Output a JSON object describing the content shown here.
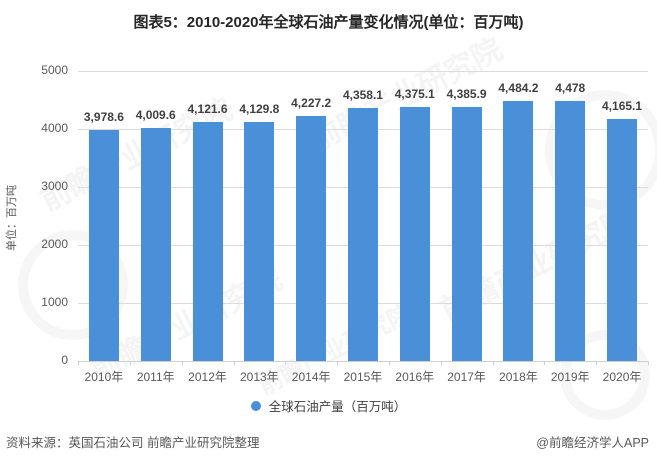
{
  "title": "图表5：2010-2020年全球石油产量变化情况(单位：百万吨)",
  "chart_data": {
    "type": "bar",
    "title": "图表5：2010-2020年全球石油产量变化情况(单位：百万吨)",
    "categories": [
      "2010年",
      "2011年",
      "2012年",
      "2013年",
      "2014年",
      "2015年",
      "2016年",
      "2017年",
      "2018年",
      "2019年",
      "2020年"
    ],
    "values": [
      3978.6,
      4009.6,
      4121.6,
      4129.8,
      4227.2,
      4358.1,
      4375.1,
      4385.9,
      4484.2,
      4478,
      4165.1
    ],
    "value_labels": [
      "3,978.6",
      "4,009.6",
      "4,121.6",
      "4,129.8",
      "4,227.2",
      "4,358.1",
      "4,375.1",
      "4,385.9",
      "4,484.2",
      "4,478",
      "4,165.1"
    ],
    "xlabel": "",
    "ylabel": "单位：百万吨",
    "ylim": [
      0,
      5000
    ],
    "yticks": [
      0,
      1000,
      2000,
      3000,
      4000,
      5000
    ],
    "grid": true,
    "legend": [
      "全球石油产量（百万吨）"
    ],
    "legend_position": "bottom",
    "bar_color": "#4a90d8"
  },
  "y_axis": {
    "title": "单位：百万吨"
  },
  "legend": {
    "label": "全球石油产量（百万吨）",
    "marker_color": "#4a90d8"
  },
  "footer": {
    "source": "资料来源：英国石油公司 前瞻产业研究院整理",
    "credit": "@前瞻经济学人APP"
  },
  "watermark": {
    "text": "前瞻产业研究院"
  },
  "colors": {
    "bar": "#4a90d8",
    "grid": "#dcdcdc",
    "axis_text": "#595959",
    "value_label_text": "#404040",
    "title_text": "#262626"
  }
}
